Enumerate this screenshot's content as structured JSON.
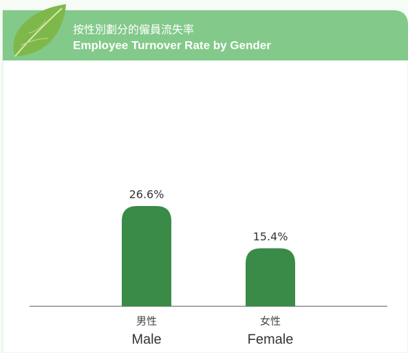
{
  "chart_data": {
    "type": "bar",
    "title": "按性別劃分的僱員流失率",
    "subtitle": "Employee Turnover Rate by Gender",
    "categories": [
      {
        "zh": "男性",
        "en": "Male"
      },
      {
        "zh": "女性",
        "en": "Female"
      }
    ],
    "values": [
      26.6,
      15.4
    ],
    "value_labels": [
      "26.6%",
      "15.4%"
    ],
    "color": "#3a8a48"
  }
}
